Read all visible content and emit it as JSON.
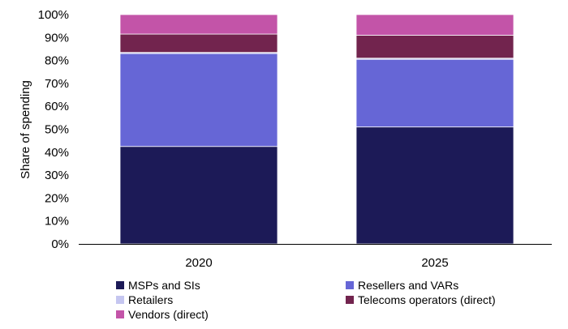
{
  "chart_data": {
    "type": "bar",
    "stacked": true,
    "categories": [
      "2020",
      "2025"
    ],
    "series": [
      {
        "name": "MSPs and SIs",
        "color": "#1c1a57",
        "values": [
          42.5,
          51
        ]
      },
      {
        "name": "Resellers and VARs",
        "color": "#6666d6",
        "values": [
          40.5,
          29.5
        ]
      },
      {
        "name": "Retailers",
        "color": "#c5c6f0",
        "values": [
          0.5,
          0.5
        ]
      },
      {
        "name": "Telecoms operators (direct)",
        "color": "#72244e",
        "values": [
          8,
          10
        ]
      },
      {
        "name": "Vendors (direct)",
        "color": "#c354a8",
        "values": [
          8.5,
          9
        ]
      }
    ],
    "xlabel": "",
    "ylabel": "Share of spending",
    "ylim": [
      0,
      100
    ],
    "yticks": [
      "0%",
      "10%",
      "20%",
      "30%",
      "40%",
      "50%",
      "60%",
      "70%",
      "80%",
      "90%",
      "100%"
    ],
    "grid": false,
    "legend_position": "bottom"
  }
}
